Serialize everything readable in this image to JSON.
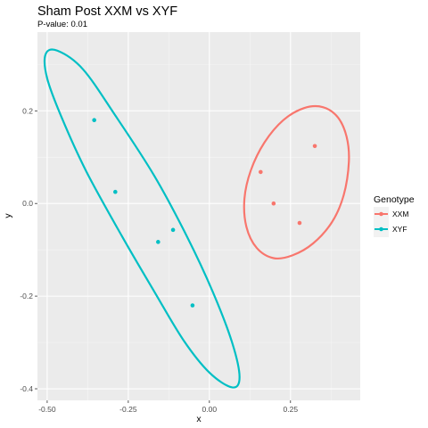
{
  "chart_data": {
    "type": "scatter",
    "title": "Sham Post XXM vs XYF",
    "subtitle": "P-value: 0.01",
    "xlabel": "x",
    "ylabel": "y",
    "xlim": [
      -0.53,
      0.465
    ],
    "ylim": [
      -0.425,
      0.37
    ],
    "x_ticks": [
      -0.5,
      -0.25,
      0.0,
      0.25
    ],
    "x_tick_labels": [
      "-0.50",
      "-0.25",
      "0.00",
      "0.25"
    ],
    "y_ticks": [
      -0.4,
      -0.2,
      0.0,
      0.2
    ],
    "y_tick_labels": [
      "-0.4",
      "-0.2",
      "0.0",
      "0.2"
    ],
    "grid": true,
    "legend": {
      "title": "Genotype",
      "position": "right"
    },
    "series": [
      {
        "name": "XXM",
        "color": "#F8766D",
        "points": [
          {
            "x": 0.325,
            "y": 0.124
          },
          {
            "x": 0.158,
            "y": 0.068
          },
          {
            "x": 0.198,
            "y": 0.0
          },
          {
            "x": 0.278,
            "y": -0.042
          }
        ],
        "ellipse": [
          [
            0.43,
            0.09
          ],
          [
            0.423,
            0.144
          ],
          [
            0.396,
            0.186
          ],
          [
            0.35,
            0.208
          ],
          [
            0.292,
            0.206
          ],
          [
            0.228,
            0.18
          ],
          [
            0.17,
            0.132
          ],
          [
            0.128,
            0.072
          ],
          [
            0.108,
            0.01
          ],
          [
            0.114,
            -0.05
          ],
          [
            0.146,
            -0.096
          ],
          [
            0.198,
            -0.118
          ],
          [
            0.256,
            -0.112
          ],
          [
            0.32,
            -0.086
          ],
          [
            0.378,
            -0.04
          ],
          [
            0.414,
            0.018
          ],
          [
            0.43,
            0.09
          ]
        ]
      },
      {
        "name": "XYF",
        "color": "#00BFC4",
        "points": [
          {
            "x": -0.355,
            "y": 0.18
          },
          {
            "x": -0.29,
            "y": 0.025
          },
          {
            "x": -0.112,
            "y": -0.057
          },
          {
            "x": -0.158,
            "y": -0.083
          },
          {
            "x": -0.052,
            "y": -0.22
          }
        ],
        "ellipse": [
          [
            -0.469,
            0.33
          ],
          [
            -0.505,
            0.322
          ],
          [
            -0.5,
            0.27
          ],
          [
            -0.455,
            0.185
          ],
          [
            -0.38,
            0.07
          ],
          [
            -0.27,
            -0.07
          ],
          [
            -0.17,
            -0.19
          ],
          [
            -0.08,
            -0.295
          ],
          [
            0.0,
            -0.365
          ],
          [
            0.07,
            -0.397
          ],
          [
            0.093,
            -0.375
          ],
          [
            0.07,
            -0.3
          ],
          [
            0.01,
            -0.19
          ],
          [
            -0.07,
            -0.07
          ],
          [
            -0.17,
            0.06
          ],
          [
            -0.29,
            0.19
          ],
          [
            -0.39,
            0.29
          ],
          [
            -0.469,
            0.33
          ]
        ]
      }
    ]
  }
}
